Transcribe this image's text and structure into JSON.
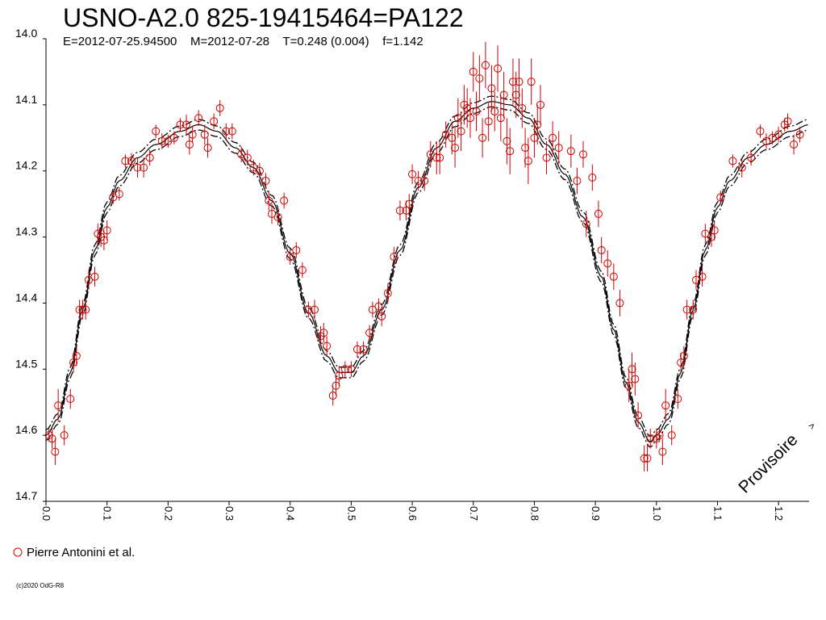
{
  "chart_data": {
    "type": "scatter",
    "title": "USNO-A2.0 825-19415464=PA122",
    "subtitle": "E=2012-07-25.94500    M=2012-07-28    T=0.248 (0.004)    f=1.142",
    "xlabel": "",
    "ylabel": "",
    "xlim": [
      0.0,
      1.25
    ],
    "ylim": [
      14.0,
      14.7
    ],
    "y_inverted": true,
    "grid": false,
    "x_ticks": [
      "0.0",
      "0.1",
      "0.2",
      "0.3",
      "0.4",
      "0.5",
      "0.6",
      "0.7",
      "0.8",
      "0.9",
      "1.0",
      "1.1",
      "1.2"
    ],
    "y_ticks": [
      "14.0",
      "14.1",
      "14.2",
      "14.3",
      "14.4",
      "14.5",
      "14.6",
      "14.7"
    ],
    "legend_position": "bottom-left",
    "stamp": "Provisoire",
    "credit": "(c)2020 OdG-R8",
    "model": {
      "name": "fit",
      "color": "#000000",
      "period_phase": [
        [
          0.0,
          14.6
        ],
        [
          0.02,
          14.575
        ],
        [
          0.04,
          14.505
        ],
        [
          0.06,
          14.41
        ],
        [
          0.08,
          14.32
        ],
        [
          0.1,
          14.255
        ],
        [
          0.12,
          14.215
        ],
        [
          0.15,
          14.18
        ],
        [
          0.18,
          14.16
        ],
        [
          0.22,
          14.14
        ],
        [
          0.25,
          14.13
        ],
        [
          0.28,
          14.14
        ],
        [
          0.31,
          14.165
        ],
        [
          0.34,
          14.195
        ],
        [
          0.37,
          14.245
        ],
        [
          0.4,
          14.325
        ],
        [
          0.43,
          14.415
        ],
        [
          0.46,
          14.48
        ],
        [
          0.48,
          14.505
        ],
        [
          0.5,
          14.505
        ],
        [
          0.52,
          14.48
        ],
        [
          0.55,
          14.41
        ],
        [
          0.58,
          14.32
        ],
        [
          0.61,
          14.225
        ],
        [
          0.64,
          14.165
        ],
        [
          0.67,
          14.125
        ],
        [
          0.7,
          14.105
        ],
        [
          0.73,
          14.095
        ],
        [
          0.76,
          14.1
        ],
        [
          0.79,
          14.12
        ],
        [
          0.82,
          14.16
        ],
        [
          0.85,
          14.205
        ],
        [
          0.88,
          14.27
        ],
        [
          0.91,
          14.36
        ],
        [
          0.93,
          14.44
        ],
        [
          0.95,
          14.52
        ],
        [
          0.97,
          14.58
        ],
        [
          0.99,
          14.61
        ],
        [
          1.0,
          14.6
        ]
      ],
      "band": 0.008
    },
    "series": [
      {
        "name": "Pierre Antonini et al.",
        "color": "#cc0000",
        "points": [
          [
            0.005,
            14.6,
            0.01
          ],
          [
            0.01,
            14.605,
            0.015
          ],
          [
            0.015,
            14.625,
            0.02
          ],
          [
            0.02,
            14.555,
            0.025
          ],
          [
            0.03,
            14.6,
            0.015
          ],
          [
            0.04,
            14.545,
            0.015
          ],
          [
            0.045,
            14.49,
            0.015
          ],
          [
            0.05,
            14.48,
            0.015
          ],
          [
            0.055,
            14.41,
            0.015
          ],
          [
            0.06,
            14.41,
            0.015
          ],
          [
            0.065,
            14.41,
            0.015
          ],
          [
            0.07,
            14.365,
            0.015
          ],
          [
            0.08,
            14.36,
            0.015
          ],
          [
            0.085,
            14.295,
            0.015
          ],
          [
            0.09,
            14.3,
            0.015
          ],
          [
            0.095,
            14.305,
            0.015
          ],
          [
            0.1,
            14.29,
            0.015
          ],
          [
            0.11,
            14.24,
            0.01
          ],
          [
            0.12,
            14.235,
            0.01
          ],
          [
            0.13,
            14.185,
            0.01
          ],
          [
            0.14,
            14.185,
            0.012
          ],
          [
            0.15,
            14.195,
            0.015
          ],
          [
            0.16,
            14.195,
            0.015
          ],
          [
            0.17,
            14.18,
            0.012
          ],
          [
            0.18,
            14.14,
            0.01
          ],
          [
            0.19,
            14.155,
            0.012
          ],
          [
            0.2,
            14.155,
            0.01
          ],
          [
            0.21,
            14.15,
            0.01
          ],
          [
            0.22,
            14.13,
            0.01
          ],
          [
            0.23,
            14.13,
            0.015
          ],
          [
            0.235,
            14.16,
            0.015
          ],
          [
            0.24,
            14.145,
            0.012
          ],
          [
            0.25,
            14.12,
            0.012
          ],
          [
            0.26,
            14.145,
            0.015
          ],
          [
            0.265,
            14.165,
            0.015
          ],
          [
            0.275,
            14.125,
            0.012
          ],
          [
            0.285,
            14.105,
            0.012
          ],
          [
            0.295,
            14.14,
            0.012
          ],
          [
            0.305,
            14.14,
            0.012
          ],
          [
            0.32,
            14.175,
            0.012
          ],
          [
            0.33,
            14.18,
            0.012
          ],
          [
            0.34,
            14.195,
            0.012
          ],
          [
            0.35,
            14.2,
            0.012
          ],
          [
            0.36,
            14.215,
            0.012
          ],
          [
            0.365,
            14.245,
            0.015
          ],
          [
            0.37,
            14.265,
            0.015
          ],
          [
            0.38,
            14.27,
            0.012
          ],
          [
            0.39,
            14.245,
            0.012
          ],
          [
            0.4,
            14.33,
            0.012
          ],
          [
            0.41,
            14.32,
            0.012
          ],
          [
            0.42,
            14.35,
            0.012
          ],
          [
            0.43,
            14.41,
            0.012
          ],
          [
            0.44,
            14.41,
            0.015
          ],
          [
            0.45,
            14.45,
            0.015
          ],
          [
            0.455,
            14.445,
            0.015
          ],
          [
            0.46,
            14.465,
            0.015
          ],
          [
            0.47,
            14.54,
            0.015
          ],
          [
            0.475,
            14.525,
            0.015
          ],
          [
            0.48,
            14.51,
            0.015
          ],
          [
            0.49,
            14.5,
            0.012
          ],
          [
            0.5,
            14.5,
            0.012
          ],
          [
            0.51,
            14.47,
            0.012
          ],
          [
            0.52,
            14.47,
            0.012
          ],
          [
            0.53,
            14.445,
            0.012
          ],
          [
            0.535,
            14.41,
            0.012
          ],
          [
            0.545,
            14.405,
            0.012
          ],
          [
            0.55,
            14.42,
            0.015
          ],
          [
            0.56,
            14.385,
            0.015
          ],
          [
            0.57,
            14.33,
            0.015
          ],
          [
            0.58,
            14.26,
            0.015
          ],
          [
            0.59,
            14.26,
            0.015
          ],
          [
            0.595,
            14.25,
            0.015
          ],
          [
            0.6,
            14.205,
            0.015
          ],
          [
            0.61,
            14.215,
            0.015
          ],
          [
            0.62,
            14.215,
            0.015
          ],
          [
            0.63,
            14.175,
            0.02
          ],
          [
            0.64,
            14.18,
            0.025
          ],
          [
            0.645,
            14.18,
            0.025
          ],
          [
            0.655,
            14.145,
            0.02
          ],
          [
            0.665,
            14.15,
            0.025
          ],
          [
            0.67,
            14.165,
            0.03
          ],
          [
            0.675,
            14.12,
            0.03
          ],
          [
            0.68,
            14.14,
            0.03
          ],
          [
            0.685,
            14.1,
            0.03
          ],
          [
            0.69,
            14.105,
            0.03
          ],
          [
            0.695,
            14.12,
            0.03
          ],
          [
            0.7,
            14.05,
            0.03
          ],
          [
            0.705,
            14.11,
            0.03
          ],
          [
            0.71,
            14.06,
            0.035
          ],
          [
            0.715,
            14.15,
            0.03
          ],
          [
            0.72,
            14.04,
            0.035
          ],
          [
            0.725,
            14.125,
            0.03
          ],
          [
            0.73,
            14.075,
            0.035
          ],
          [
            0.735,
            14.11,
            0.03
          ],
          [
            0.74,
            14.045,
            0.035
          ],
          [
            0.745,
            14.12,
            0.035
          ],
          [
            0.75,
            14.085,
            0.035
          ],
          [
            0.755,
            14.155,
            0.035
          ],
          [
            0.76,
            14.17,
            0.035
          ],
          [
            0.765,
            14.065,
            0.035
          ],
          [
            0.77,
            14.085,
            0.035
          ],
          [
            0.775,
            14.065,
            0.035
          ],
          [
            0.78,
            14.105,
            0.03
          ],
          [
            0.785,
            14.165,
            0.03
          ],
          [
            0.79,
            14.185,
            0.035
          ],
          [
            0.795,
            14.065,
            0.035
          ],
          [
            0.8,
            14.15,
            0.03
          ],
          [
            0.805,
            14.13,
            0.03
          ],
          [
            0.81,
            14.1,
            0.03
          ],
          [
            0.82,
            14.18,
            0.025
          ],
          [
            0.83,
            14.15,
            0.025
          ],
          [
            0.84,
            14.165,
            0.025
          ],
          [
            0.86,
            14.17,
            0.025
          ],
          [
            0.87,
            14.215,
            0.02
          ],
          [
            0.88,
            14.175,
            0.02
          ],
          [
            0.885,
            14.28,
            0.02
          ],
          [
            0.895,
            14.21,
            0.02
          ],
          [
            0.905,
            14.265,
            0.02
          ],
          [
            0.91,
            14.32,
            0.02
          ],
          [
            0.92,
            14.34,
            0.02
          ],
          [
            0.93,
            14.36,
            0.02
          ],
          [
            0.94,
            14.4,
            0.02
          ],
          [
            0.955,
            14.525,
            0.025
          ],
          [
            0.96,
            14.5,
            0.025
          ],
          [
            0.965,
            14.515,
            0.025
          ],
          [
            0.97,
            14.57,
            0.02
          ],
          [
            0.98,
            14.635,
            0.02
          ],
          [
            0.985,
            14.635,
            0.02
          ],
          [
            0.99,
            14.605,
            0.015
          ],
          [
            1.0,
            14.605,
            0.015
          ],
          [
            1.005,
            14.6,
            0.01
          ],
          [
            1.01,
            14.625,
            0.02
          ],
          [
            1.015,
            14.555,
            0.025
          ],
          [
            1.025,
            14.6,
            0.015
          ],
          [
            1.035,
            14.545,
            0.015
          ],
          [
            1.04,
            14.49,
            0.015
          ],
          [
            1.045,
            14.48,
            0.015
          ],
          [
            1.05,
            14.41,
            0.015
          ],
          [
            1.06,
            14.41,
            0.015
          ],
          [
            1.065,
            14.365,
            0.015
          ],
          [
            1.075,
            14.36,
            0.015
          ],
          [
            1.08,
            14.295,
            0.015
          ],
          [
            1.09,
            14.3,
            0.015
          ],
          [
            1.095,
            14.29,
            0.015
          ],
          [
            1.105,
            14.24,
            0.01
          ],
          [
            1.125,
            14.185,
            0.01
          ],
          [
            1.14,
            14.195,
            0.015
          ],
          [
            1.155,
            14.18,
            0.012
          ],
          [
            1.17,
            14.14,
            0.01
          ],
          [
            1.18,
            14.155,
            0.012
          ],
          [
            1.19,
            14.15,
            0.01
          ],
          [
            1.2,
            14.145,
            0.012
          ],
          [
            1.21,
            14.13,
            0.01
          ],
          [
            1.215,
            14.125,
            0.012
          ],
          [
            1.225,
            14.16,
            0.015
          ],
          [
            1.235,
            14.145,
            0.012
          ]
        ]
      }
    ]
  }
}
